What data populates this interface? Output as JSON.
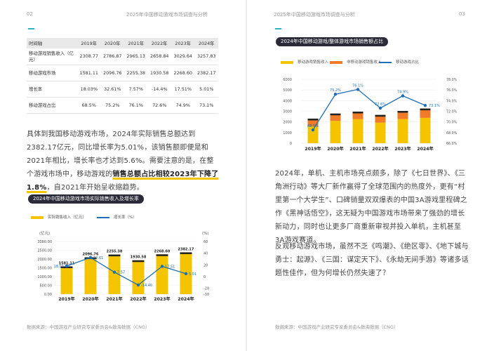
{
  "left_page": {
    "page_number": "02",
    "header": "2025年中国移动游戏市场调查与分析",
    "table": {
      "headers": [
        "时间轴",
        "2019年",
        "2020年",
        "2021年",
        "2022年",
        "2023年",
        "2024年"
      ],
      "rows": [
        [
          "移动游戏销售收入（亿元）",
          "2308.77",
          "2786.87",
          "2965.13",
          "2658.84",
          "3029.64",
          "3257.83"
        ],
        [
          "移动游戏市场",
          "1581.11",
          "2096.76",
          "2255.38",
          "1930.58",
          "2268.60",
          "2382.17"
        ],
        [
          "增长率",
          "18.03%",
          "32.61%",
          "7.57%",
          "-14.4%",
          "17.51%",
          "5.01%"
        ],
        [
          "移动游戏占比",
          "68.5%",
          "75.2%",
          "76.1%",
          "72.6%",
          "74.9%",
          "73.1%"
        ]
      ]
    },
    "paragraph": {
      "p1": "具体到我国移动游戏市场，2024年实际销售总额达到2382.17亿元，同比增长率为5.01%，该销售额即便是和2021年相比，增长率也才达到5.6%。需要注意的是，在整个游戏市场中，移动游戏的",
      "highlight": "销售总额占比相较2023年下降了1.8%",
      "p2": "，自2021年开始呈收缩趋势。"
    },
    "chart_title": "2024年中国移动游戏市场实际销售收入及增长率",
    "legend": {
      "bar": "实际销售收入（亿元）",
      "line": "增长率（%）"
    },
    "footer": "数据来源：中国游戏产业研究专家委员会&数海数据（CNG）"
  },
  "right_page": {
    "page_number": "03",
    "header": "2025年中国移动游戏市场调查与分析",
    "chart_title": "2024年中国移动游戏/整体游戏市场销售额占比",
    "legend": {
      "a": "移动游戏销售收入",
      "b": "非移动游戏销售收入",
      "c": "移动游戏占比"
    },
    "paragraphs": [
      "2024年，单机、主机市场亮点颇多，除了《七日世界》、《三角洲行动》等大厂新作赢得了全球范围内的热度外，更有“村里第一个大学生”、口碑销量双双爆表的中国3A游戏里程碑之作《黑神话悟空》，这无疑为中国游戏市场带来了强劲的增长新动力，同时也让更多厂商重新审视并投入单机，主机甚至3A游戏赛道。",
      "反观移动游戏市场，虽然不乏《鸣潮》、《绝区零》、《地下城与勇士：起源》、《三国：谋定天下》、《永劫无间手游》等诸多话题性佳作，但为何增长仍然失速了？"
    ],
    "footer": "数据来源：中国游戏产业研究专家委员会&数海数据（CNG）"
  },
  "chart_data": [
    {
      "type": "bar",
      "title": "2024年中国移动游戏市场实际销售收入及增长率",
      "categories": [
        "2019年",
        "2020年",
        "2021年",
        "2022年",
        "2023年",
        "2024年"
      ],
      "series": [
        {
          "name": "实际销售收入（亿元）",
          "type": "bar",
          "values": [
            1581.11,
            2096.76,
            2255.38,
            1930.58,
            2268.6,
            2382.17
          ],
          "color": "#f5c400"
        },
        {
          "name": "增长率（%）",
          "type": "line",
          "axis": "right",
          "values": [
            18.03,
            32.61,
            7.57,
            -14.4,
            17.51,
            5.01
          ],
          "color": "#1f6fb5"
        }
      ],
      "ylabel": "(亿元)",
      "y2label": "(%)",
      "ylim": [
        0,
        3000
      ],
      "y_ticks": [
        "0.00",
        "500.00",
        "1000.00",
        "1500.00",
        "2000.00",
        "2500.00",
        "3000.00"
      ],
      "y2lim": [
        -30,
        60
      ],
      "y2_ticks": [
        "60",
        "40",
        "20",
        "0",
        "-20",
        "-30"
      ],
      "bar_labels": [
        "1581.11",
        "2096.76",
        "2255.38",
        "1930.58",
        "2268.60",
        "2382.17"
      ],
      "line_labels": [
        "18.03",
        "32.61",
        "7.57",
        "-14.40",
        "17.51",
        "5.01"
      ],
      "grid": true,
      "legend": "top-left"
    },
    {
      "type": "bar",
      "title": "2024年中国移动游戏/整体游戏市场销售额占比",
      "categories": [
        "2019年",
        "2020年",
        "2021年",
        "2022年",
        "2023年",
        "2024年"
      ],
      "series": [
        {
          "name": "移动游戏销售收入",
          "type": "stacked-bar",
          "values": [
            1581.11,
            2096.76,
            2255.38,
            1930.58,
            2268.6,
            2382.17
          ],
          "color": "#f5c400"
        },
        {
          "name": "非移动游戏销售收入",
          "type": "stacked-bar",
          "values": [
            727.66,
            690.11,
            709.75,
            728.26,
            761.04,
            875.66
          ],
          "color": "#f07a26"
        },
        {
          "name": "移动游戏占比",
          "type": "line",
          "axis": "right",
          "values": [
            68.5,
            75.2,
            76.1,
            72.6,
            74.9,
            73.1
          ],
          "color": "#1f6fb5"
        }
      ],
      "ylim": [
        0,
        6000
      ],
      "y_ticks": [
        "0",
        "1000",
        "2000",
        "3000",
        "4000",
        "5000",
        "6000"
      ],
      "y2lim": [
        66,
        78
      ],
      "y2_ticks": [
        "78.0%",
        "76.0%",
        "74.0%",
        "72.0%",
        "70.0%",
        "68.0%",
        "66.0%"
      ],
      "line_labels": [
        "68.5%",
        "75.2%",
        "76.1%",
        "72.6%",
        "74.9%",
        "73.1%"
      ],
      "grid": true,
      "legend": "top"
    }
  ]
}
